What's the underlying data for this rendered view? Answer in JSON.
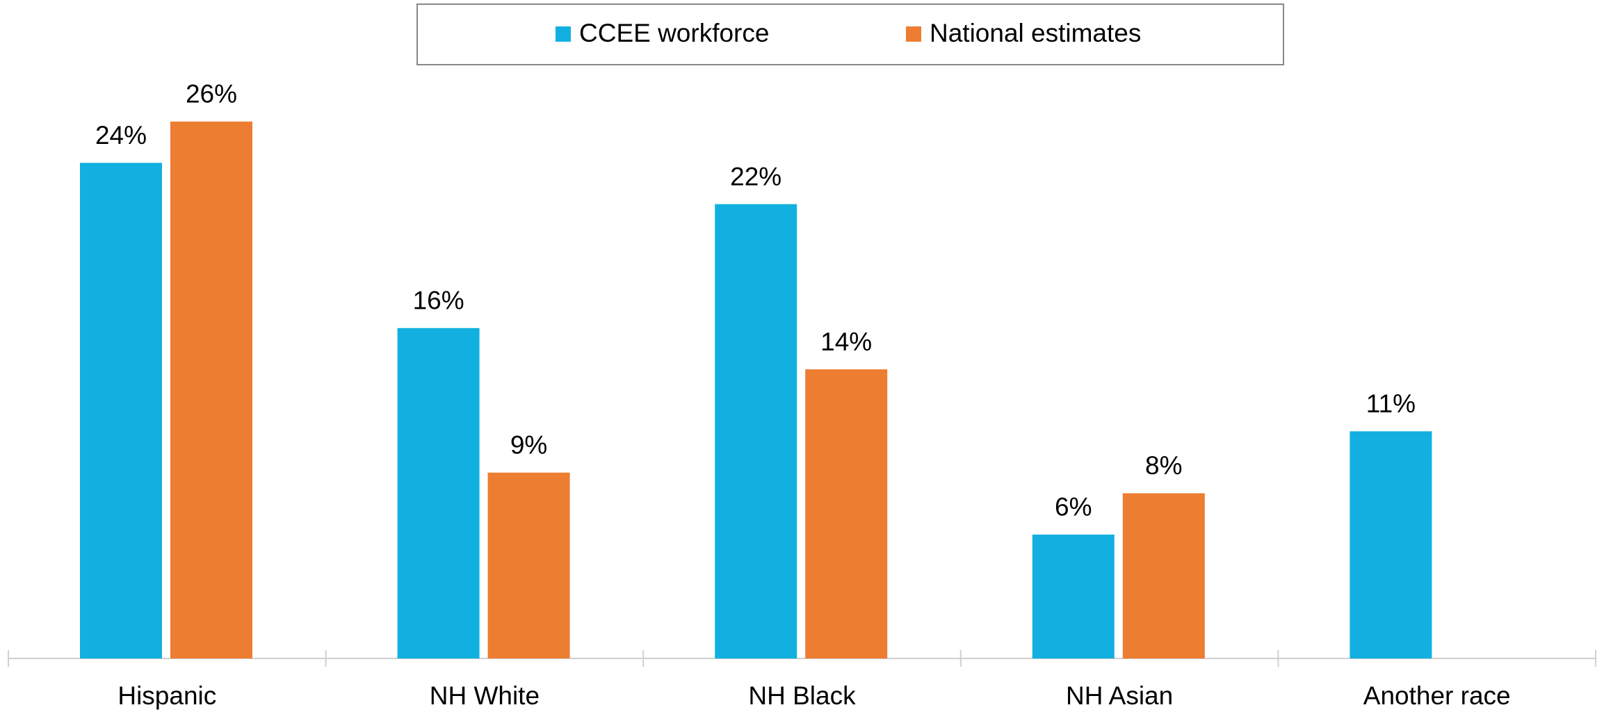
{
  "chart_data": {
    "type": "bar",
    "categories": [
      "Hispanic",
      "NH White",
      "NH Black",
      "NH Asian",
      "Another race"
    ],
    "series": [
      {
        "name": "CCEE workforce",
        "color": "#12b0e0",
        "values": [
          24,
          16,
          22,
          6,
          11
        ],
        "value_labels": [
          "24%",
          "16%",
          "22%",
          "6%",
          "11%"
        ]
      },
      {
        "name": "National estimates",
        "color": "#ed7d31",
        "values": [
          26,
          9,
          14,
          8,
          null
        ],
        "value_labels": [
          "26%",
          "9%",
          "14%",
          "8%",
          null
        ]
      }
    ],
    "legend": "top"
  }
}
